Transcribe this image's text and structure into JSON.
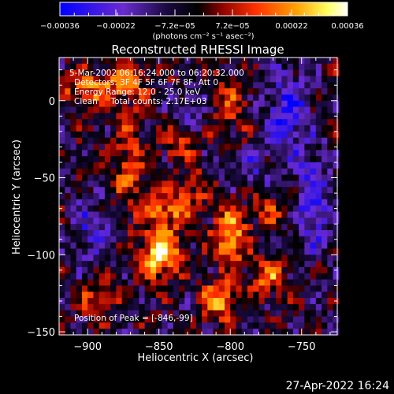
{
  "chart_data": {
    "type": "heatmap",
    "title": "Reconstructed RHESSI Image",
    "xlabel": "Heliocentric X (arcsec)",
    "ylabel": "Heliocentric Y (arcsec)",
    "xlim": [
      -920,
      -725
    ],
    "ylim": [
      -152,
      28
    ],
    "x_ticks": [
      {
        "value": -900,
        "label": "−900"
      },
      {
        "value": -850,
        "label": "−850"
      },
      {
        "value": -800,
        "label": "−800"
      },
      {
        "value": -750,
        "label": "−750"
      }
    ],
    "y_ticks": [
      {
        "value": 0,
        "label": "0"
      },
      {
        "value": -50,
        "label": "−50"
      },
      {
        "value": -100,
        "label": "−100"
      },
      {
        "value": -150,
        "label": "−150"
      }
    ],
    "annotations": [
      "5-Mar-2002 06:16:24.000 to 06:20:32.000",
      "Detectors: 3F 4F 5F 6F 7F 8F, Att 0",
      "Energy Range: 12.0 - 25.0 keV",
      "Clean     Total counts: 2.17E+03"
    ],
    "peak_label": "Position of Peak = [-846,-99]",
    "peak": {
      "x": -846,
      "y": -99
    },
    "colorbar": {
      "range": [
        -0.00036,
        0.00036
      ],
      "tick_labels": [
        "−0.00036",
        "−0.00022",
        "−7.2e−05",
        "7.2e−05",
        "0.00022",
        "0.00036"
      ],
      "unit_label": "(photons cm⁻² s⁻¹ asec⁻²)",
      "colormap": [
        "#0000ff",
        "#6a2bd0",
        "#000000",
        "#8a0000",
        "#ff3000",
        "#ffa000",
        "#ffff60",
        "#ffffff"
      ]
    },
    "sources": [
      {
        "x": -849,
        "y": -99,
        "amp": 1.0,
        "sx": 9,
        "sy": 11
      },
      {
        "x": -800,
        "y": -88,
        "amp": 0.75,
        "sx": 8,
        "sy": 13
      },
      {
        "x": -843,
        "y": -70,
        "amp": 0.6,
        "sx": 12,
        "sy": 9
      },
      {
        "x": -808,
        "y": -130,
        "amp": 0.7,
        "sx": 9,
        "sy": 9
      },
      {
        "x": -871,
        "y": -40,
        "amp": 0.45,
        "sx": 8,
        "sy": 22
      },
      {
        "x": -897,
        "y": 8,
        "amp": 0.55,
        "sx": 15,
        "sy": 8
      },
      {
        "x": -870,
        "y": 14,
        "amp": 0.45,
        "sx": 10,
        "sy": 8
      },
      {
        "x": -837,
        "y": -28,
        "amp": 0.45,
        "sx": 9,
        "sy": 8
      },
      {
        "x": -773,
        "y": -115,
        "amp": 0.55,
        "sx": 8,
        "sy": 9
      },
      {
        "x": -773,
        "y": -70,
        "amp": 0.35,
        "sx": 9,
        "sy": 8
      },
      {
        "x": -800,
        "y": -5,
        "amp": 0.4,
        "sx": 9,
        "sy": 12
      },
      {
        "x": -893,
        "y": -128,
        "amp": 0.35,
        "sx": 10,
        "sy": 8
      },
      {
        "x": -825,
        "y": -55,
        "amp": 0.3,
        "sx": 8,
        "sy": 8
      },
      {
        "x": -760,
        "y": -8,
        "amp": -0.6,
        "sx": 10,
        "sy": 20
      },
      {
        "x": -742,
        "y": -65,
        "amp": -0.55,
        "sx": 8,
        "sy": 22
      },
      {
        "x": -898,
        "y": -85,
        "amp": -0.4,
        "sx": 10,
        "sy": 15
      },
      {
        "x": -830,
        "y": -8,
        "amp": -0.35,
        "sx": 8,
        "sy": 10
      },
      {
        "x": -785,
        "y": -45,
        "amp": -0.3,
        "sx": 9,
        "sy": 9
      }
    ]
  },
  "footer": {
    "date": "27-Apr-2022 16:24"
  }
}
